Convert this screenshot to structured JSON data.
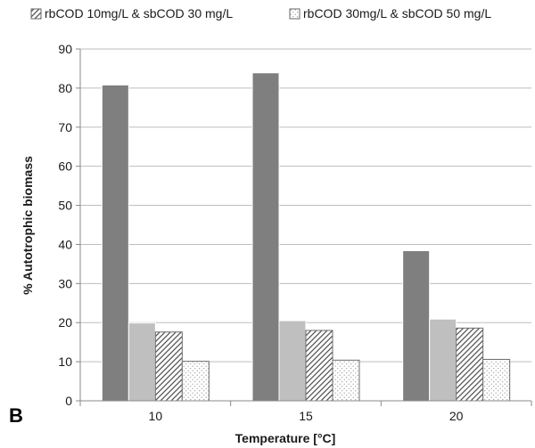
{
  "chart_data": {
    "type": "bar",
    "panel_label": "B",
    "xlabel": "Temperature [°C]",
    "ylabel": "% Autotrophic biomass",
    "categories": [
      "10",
      "15",
      "20"
    ],
    "ylim": [
      0,
      90
    ],
    "yticks": [
      0,
      10,
      20,
      30,
      40,
      50,
      60,
      70,
      80,
      90
    ],
    "grid": true,
    "legend_position": "top",
    "series": [
      {
        "values": [
          80.8,
          83.9,
          38.4
        ],
        "color": "#7f7f7f",
        "pattern": "solid"
      },
      {
        "values": [
          19.9,
          20.5,
          20.9
        ],
        "color": "#bfbfbf",
        "pattern": "solid"
      },
      {
        "name": "rbCOD 10mg/L & sbCOD 30 mg/L",
        "values": [
          17.6,
          18.0,
          18.6
        ],
        "color": "#ffffff",
        "pattern": "diagonal-hatch"
      },
      {
        "name": "rbCOD 30mg/L & sbCOD 50 mg/L",
        "values": [
          10.1,
          10.4,
          10.6
        ],
        "color": "#ffffff",
        "pattern": "dots"
      }
    ]
  }
}
